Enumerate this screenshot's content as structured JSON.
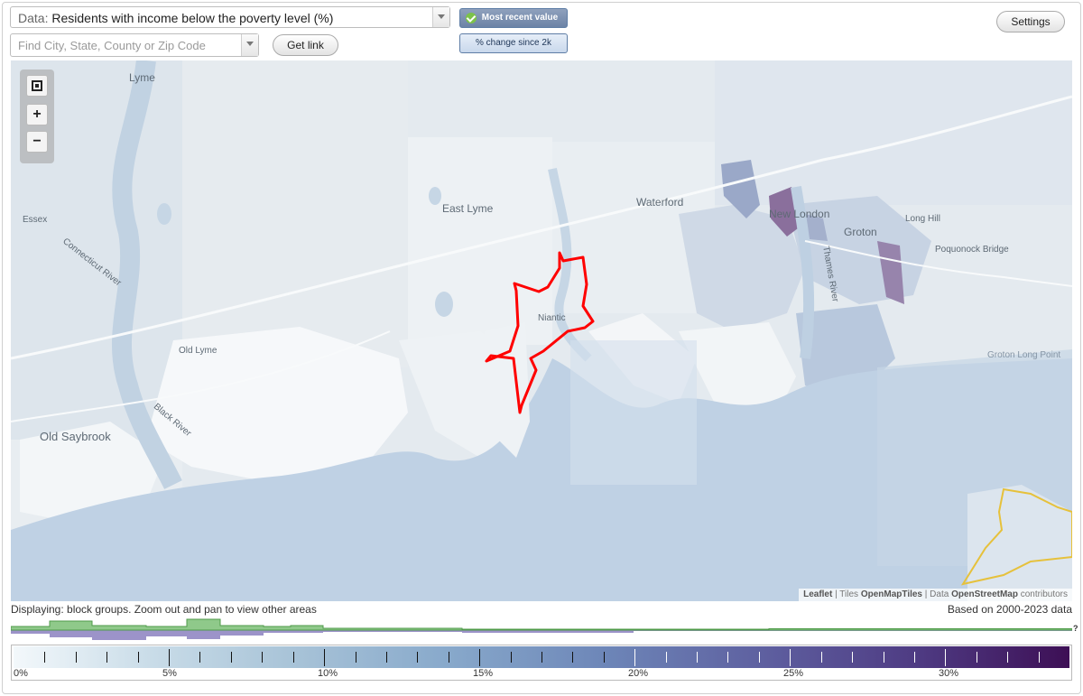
{
  "controls": {
    "data_prefix": "Data:",
    "data_value": "Residents with income below the poverty level (%)",
    "search_placeholder": "Find City, State, County or Zip Code",
    "get_link_label": "Get link",
    "settings_label": "Settings",
    "mode_recent_label": "Most recent value",
    "mode_change_label": "% change since 2k"
  },
  "map": {
    "places": {
      "lyme": "Lyme",
      "essex": "Essex",
      "connecticut_river": "Connecticut River",
      "old_lyme": "Old Lyme",
      "black_river": "Black River",
      "old_saybrook": "Old Saybrook",
      "east_lyme": "East Lyme",
      "niantic": "Niantic",
      "waterford": "Waterford",
      "new_london": "New London",
      "groton": "Groton",
      "thames_river": "Thames River",
      "long_hill": "Long Hill",
      "poquonock_bridge": "Poquonock Bridge",
      "groton_long_point": "Groton Long Point"
    },
    "highlight_color": "#ff0000",
    "boundary_color": "#e6c13b",
    "attribution": {
      "leaflet": "Leaflet",
      "tiles_prefix": "| Tiles",
      "tiles": "OpenMapTiles",
      "data_prefix": "| Data",
      "data": "OpenStreetMap",
      "data_suffix": "contributors"
    }
  },
  "status": {
    "displaying": "Displaying: block groups. Zoom out and pan to view other areas",
    "based_on": "Based on 2000-2023 data"
  },
  "histogram": {
    "question_mark": "?"
  },
  "legend": {
    "labels": [
      "0%",
      "5%",
      "10%",
      "15%",
      "20%",
      "25%",
      "30%"
    ],
    "scale_max_percent": 34
  }
}
